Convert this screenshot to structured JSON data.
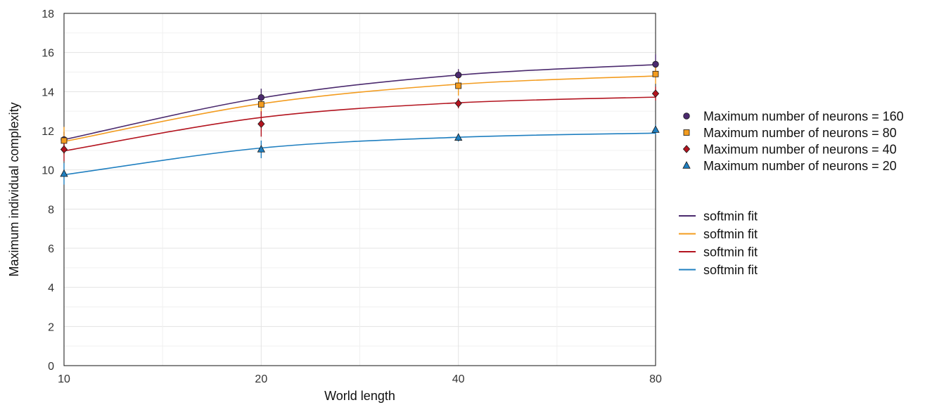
{
  "chart_data": {
    "type": "scatter",
    "title": "",
    "xlabel": "World length",
    "ylabel": "Maximum individual complexity",
    "x_scale": "log",
    "x_ticks": [
      "10",
      "20",
      "40",
      "80"
    ],
    "xlim": [
      10,
      80
    ],
    "ylim": [
      0,
      18
    ],
    "y_ticks": [
      "0",
      "2",
      "4",
      "6",
      "8",
      "10",
      "12",
      "14",
      "16",
      "18"
    ],
    "grid": true,
    "legend_placement": "right",
    "series": [
      {
        "name": "Maximum number of neurons = 160",
        "marker": "circle",
        "color": "#4b2a6e",
        "x": [
          10,
          20,
          40,
          80
        ],
        "y": [
          11.55,
          13.7,
          14.85,
          15.4
        ],
        "err": [
          0.4,
          0.45,
          0.3,
          0.5
        ]
      },
      {
        "name": "Maximum number of neurons = 80",
        "marker": "square",
        "color": "#f39c1f",
        "x": [
          10,
          20,
          40,
          80
        ],
        "y": [
          11.5,
          13.35,
          14.3,
          14.9
        ],
        "err": [
          0.7,
          0.5,
          0.5,
          0.5
        ]
      },
      {
        "name": "Maximum number of neurons = 40",
        "marker": "diamond",
        "color": "#b3141f",
        "x": [
          10,
          20,
          40,
          80
        ],
        "y": [
          11.05,
          12.35,
          13.4,
          13.9
        ],
        "err": [
          0.6,
          0.65,
          0.25,
          0.35
        ]
      },
      {
        "name": "Maximum number of neurons = 20",
        "marker": "triangle",
        "color": "#1f7fc0",
        "x": [
          10,
          20,
          40,
          80
        ],
        "y": [
          9.8,
          11.05,
          11.65,
          12.05
        ],
        "err": [
          0.55,
          0.45,
          0.2,
          0.25
        ]
      }
    ],
    "fits": [
      {
        "name": "softmin fit",
        "color": "#4b2a6e",
        "points": [
          [
            10,
            11.55
          ],
          [
            20,
            13.68
          ],
          [
            40,
            14.85
          ],
          [
            80,
            15.38
          ]
        ]
      },
      {
        "name": "softmin fit",
        "color": "#f39c1f",
        "points": [
          [
            10,
            11.45
          ],
          [
            20,
            13.38
          ],
          [
            40,
            14.38
          ],
          [
            80,
            14.8
          ]
        ]
      },
      {
        "name": "softmin fit",
        "color": "#b3141f",
        "points": [
          [
            10,
            10.97
          ],
          [
            20,
            12.68
          ],
          [
            40,
            13.43
          ],
          [
            80,
            13.72
          ]
        ]
      },
      {
        "name": "softmin fit",
        "color": "#1f7fc0",
        "points": [
          [
            10,
            9.75
          ],
          [
            20,
            11.12
          ],
          [
            40,
            11.67
          ],
          [
            80,
            11.88
          ]
        ]
      }
    ]
  }
}
